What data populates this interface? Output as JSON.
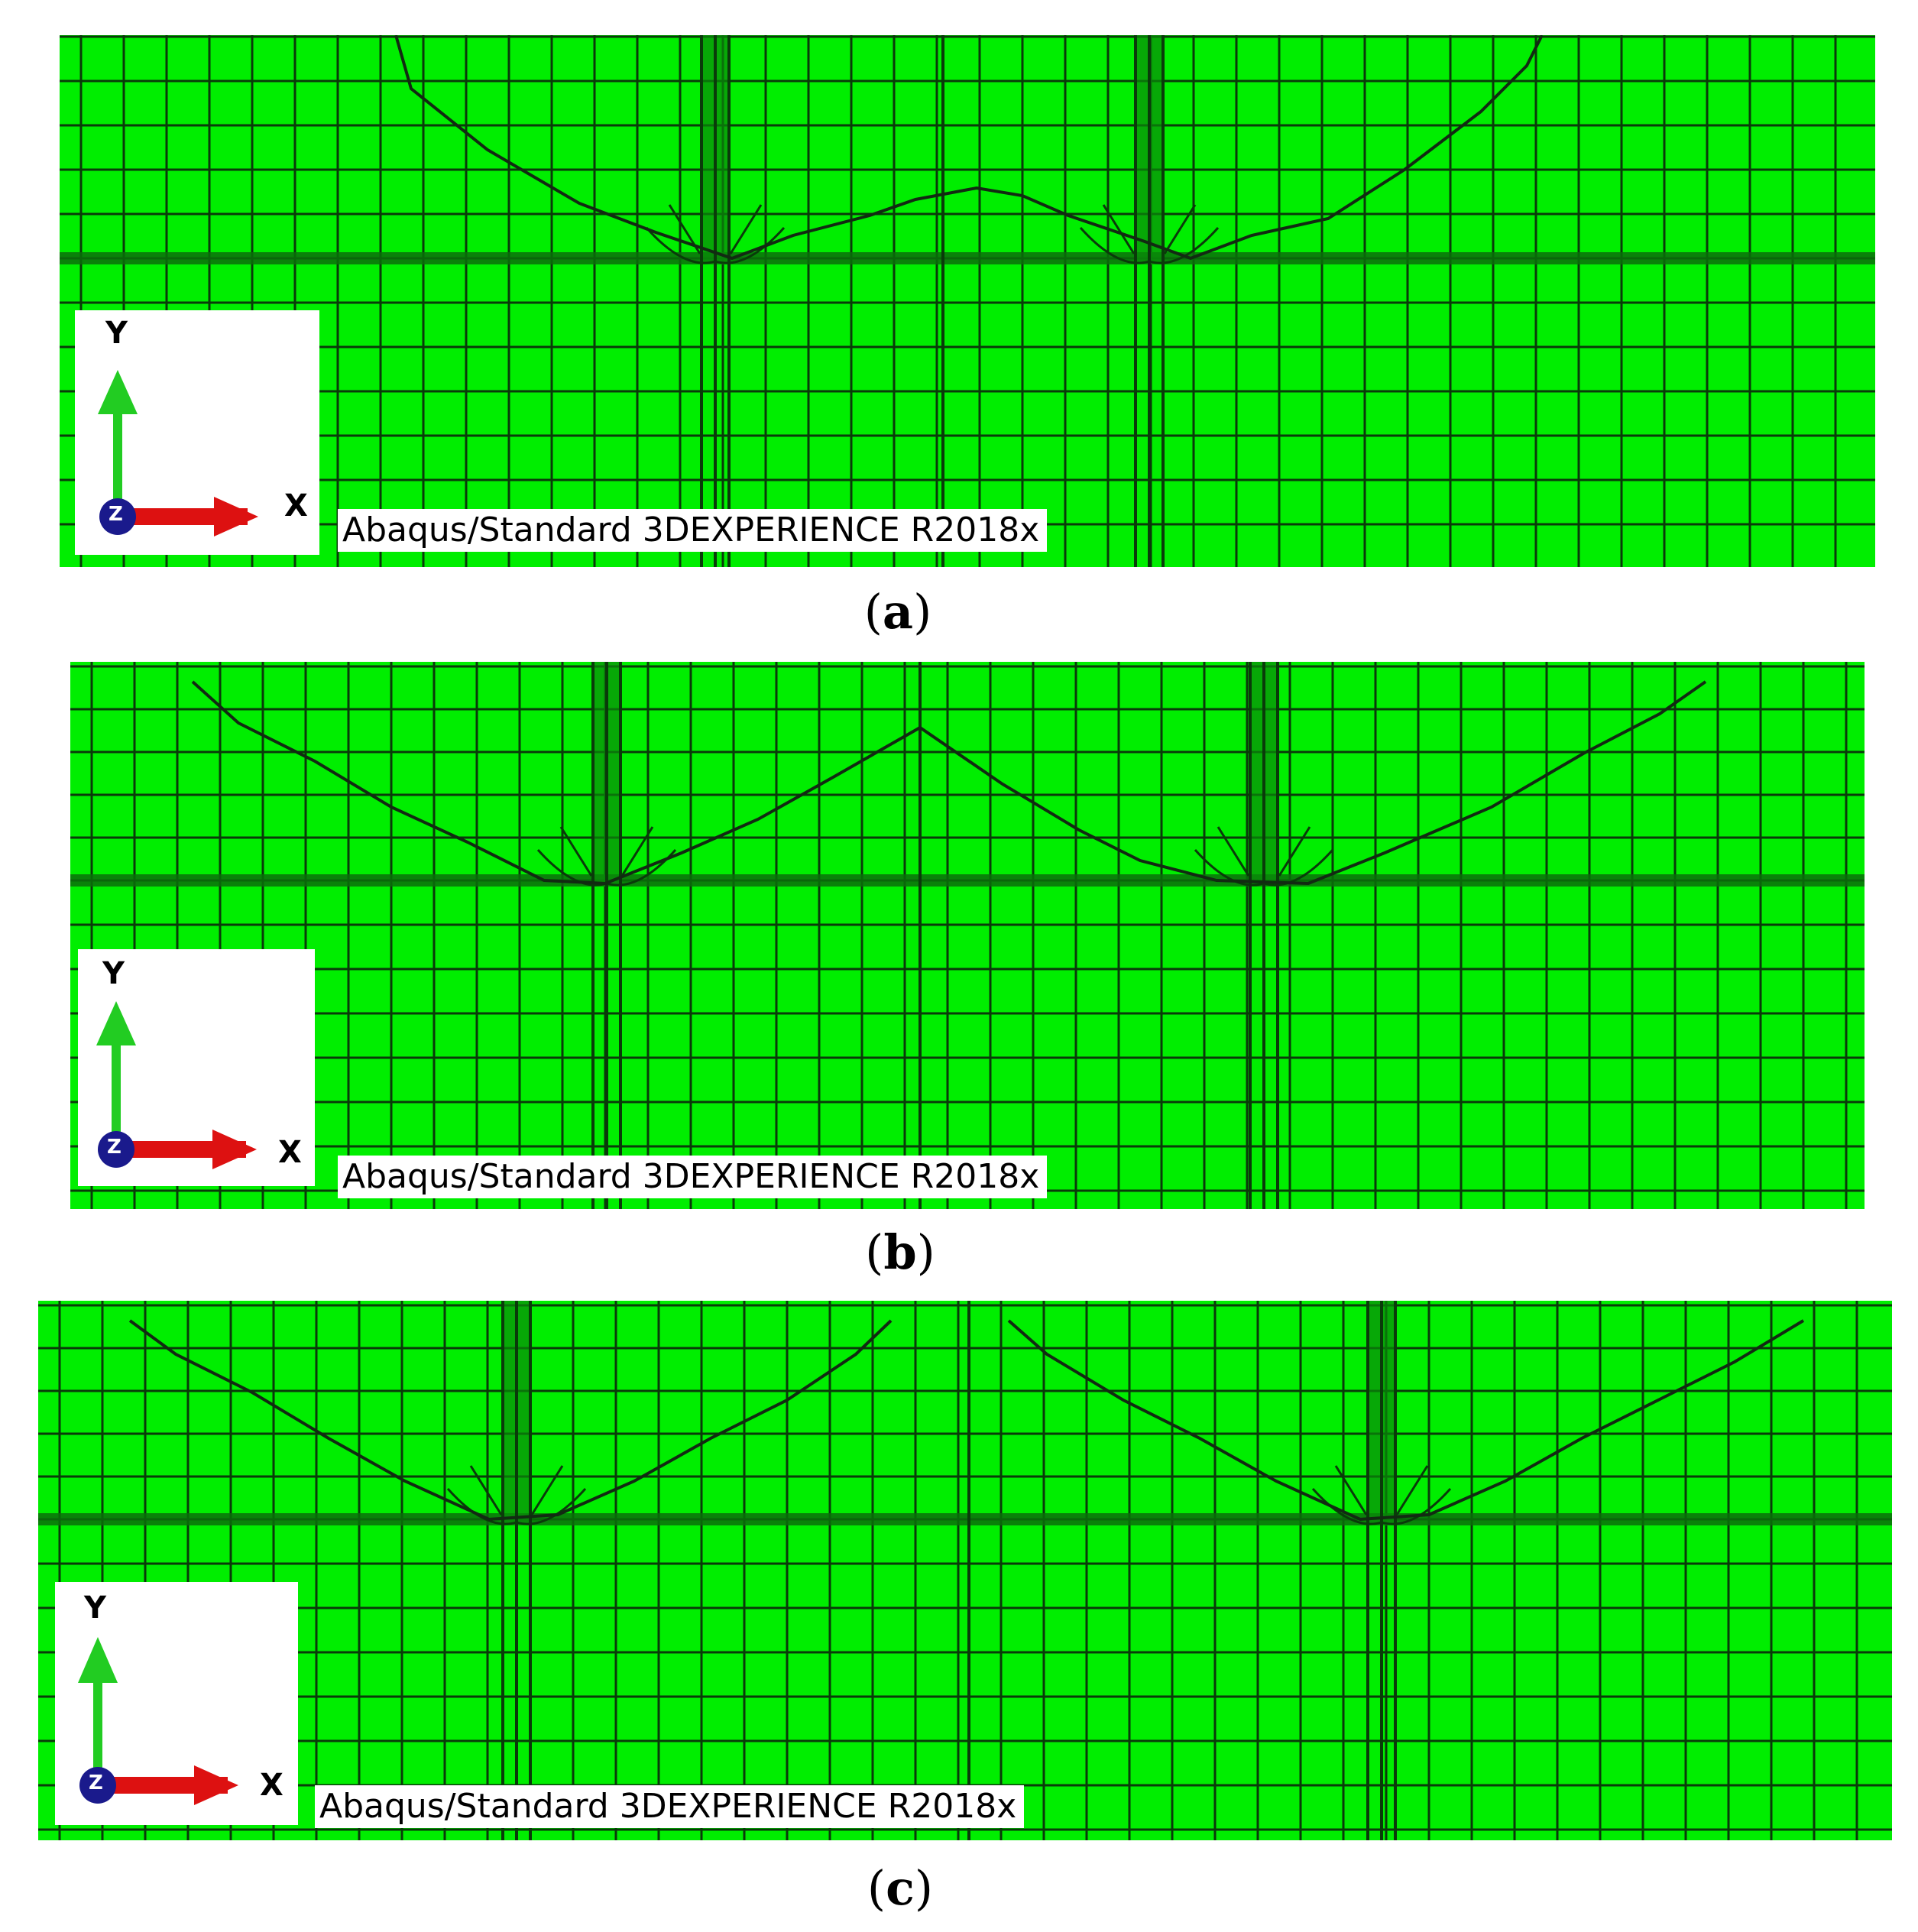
{
  "colors": {
    "mesh_fill": "#00ee00",
    "mesh_line": "#0a3a0a",
    "x_arrow": "#dd1111",
    "y_arrow": "#22cc22",
    "z_dot": "#1a1a8c"
  },
  "icons": {
    "triad": "xyz-axis-triad-icon"
  },
  "panels": [
    {
      "id": "a",
      "caption_open": "(",
      "caption_letter": "a",
      "caption_close": ")",
      "watermark": "Abaqus/Standard 3DEXPERIENCE R2018x",
      "axis_y": "Y",
      "axis_x": "X",
      "axis_z": "Z"
    },
    {
      "id": "b",
      "caption_open": "(",
      "caption_letter": "b",
      "caption_close": ")",
      "watermark": "Abaqus/Standard 3DEXPERIENCE R2018x",
      "axis_y": "Y",
      "axis_x": "X",
      "axis_z": "Z"
    },
    {
      "id": "c",
      "caption_open": "(",
      "caption_letter": "c",
      "caption_close": ")",
      "watermark": "Abaqus/Standard 3DEXPERIENCE R2018x",
      "axis_y": "Y",
      "axis_x": "X",
      "axis_z": "Z"
    }
  ]
}
